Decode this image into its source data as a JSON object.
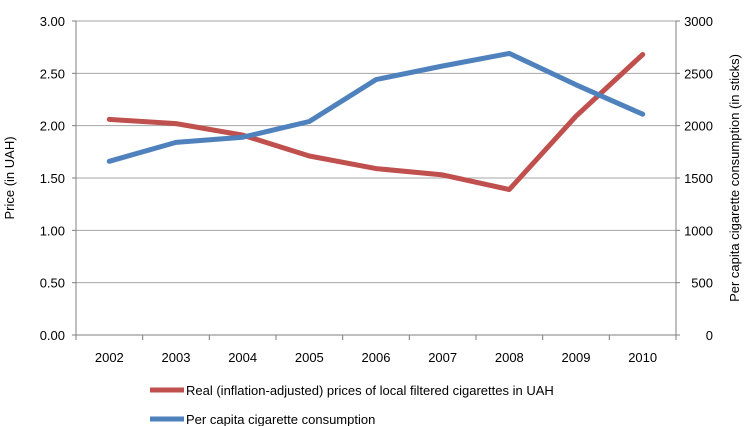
{
  "chart_data": {
    "type": "line",
    "x": [
      "2002",
      "2003",
      "2004",
      "2005",
      "2006",
      "2007",
      "2008",
      "2009",
      "2010"
    ],
    "series": [
      {
        "name": "Real (inflation-adjusted) prices of local filtered cigarettes in UAH",
        "axis": "left",
        "color": "#c0504d",
        "values": [
          2.06,
          2.02,
          1.91,
          1.71,
          1.59,
          1.53,
          1.39,
          2.09,
          2.68
        ]
      },
      {
        "name": "Per capita cigarette consumption",
        "axis": "right",
        "color": "#4f81bd",
        "values": [
          1660,
          1840,
          1890,
          2040,
          2440,
          2570,
          2690,
          2390,
          2110
        ]
      }
    ],
    "ylabel": "Price (in UAH)",
    "ylabel_right": "Per capita cigarette consumption (in sticks)",
    "ylim": [
      0,
      3
    ],
    "ylim_right": [
      0,
      3000
    ],
    "yticks": [
      "0.00",
      "0.50",
      "1.00",
      "1.50",
      "2.00",
      "2.50",
      "3.00"
    ],
    "yticks_right": [
      "0",
      "500",
      "1000",
      "1500",
      "2000",
      "2500",
      "3000"
    ],
    "grid": true,
    "legend_position": "bottom"
  }
}
